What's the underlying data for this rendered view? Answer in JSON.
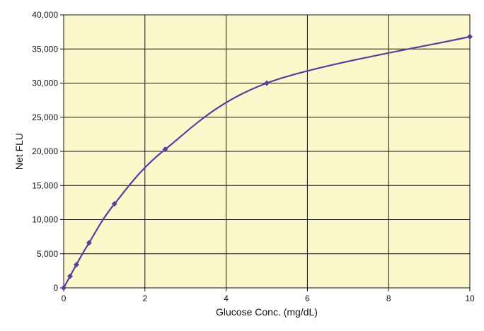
{
  "chart_data": {
    "type": "line",
    "title": "",
    "xlabel": "Glucose Conc. (mg/dL)",
    "ylabel": "Net FLU",
    "xlim": [
      0,
      10
    ],
    "ylim": [
      0,
      40000
    ],
    "x_ticks": [
      0,
      2,
      4,
      6,
      8,
      10
    ],
    "x_tick_labels": [
      "0",
      "2",
      "4",
      "6",
      "8",
      "10"
    ],
    "y_ticks": [
      0,
      5000,
      10000,
      15000,
      20000,
      25000,
      30000,
      35000,
      40000
    ],
    "y_tick_labels": [
      "0",
      "5,000",
      "10,000",
      "15,000",
      "20,000",
      "25,000",
      "30,000",
      "35,000",
      "40,000"
    ],
    "grid": true,
    "legend": "none",
    "plot_background": "#fbf8cc",
    "line_color": "#5b3d9e",
    "series": [
      {
        "x": [
          0,
          0.156,
          0.3125,
          0.625,
          1.25,
          2.5,
          5,
          10
        ],
        "y": [
          0,
          1700,
          3400,
          6600,
          12300,
          20300,
          30000,
          36800
        ]
      }
    ]
  }
}
